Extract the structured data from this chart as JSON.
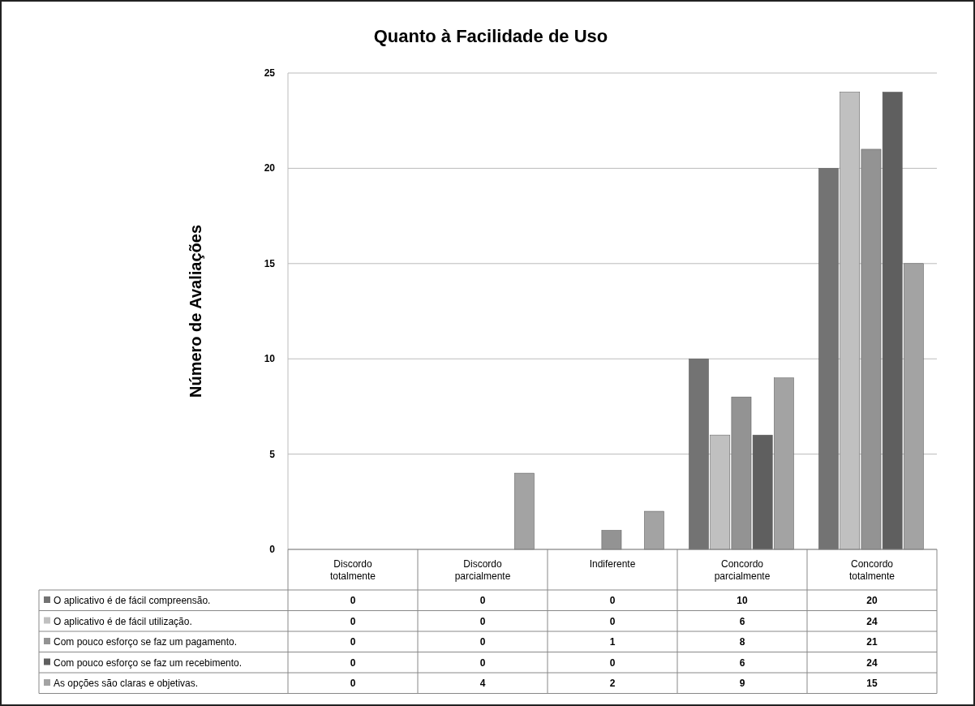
{
  "chart_data": {
    "type": "bar",
    "title": "Quanto à Facilidade de Uso",
    "ylabel": "Número de Avaliações",
    "categories": [
      "Discordo totalmente",
      "Discordo parcialmente",
      "Indiferente",
      "Concordo parcialmente",
      "Concordo totalmente"
    ],
    "series": [
      {
        "name": "O aplicativo é de fácil compreensão.",
        "color": "#737373",
        "values": [
          0,
          0,
          0,
          10,
          20
        ]
      },
      {
        "name": "O aplicativo é de fácil utilização.",
        "color": "#c0c0c0",
        "values": [
          0,
          0,
          0,
          6,
          24
        ]
      },
      {
        "name": "Com pouco esforço se faz um pagamento.",
        "color": "#939393",
        "values": [
          0,
          0,
          1,
          8,
          21
        ]
      },
      {
        "name": "Com pouco esforço se faz um recebimento.",
        "color": "#5f5f5f",
        "values": [
          0,
          0,
          0,
          6,
          24
        ]
      },
      {
        "name": "As opções são claras e objetivas.",
        "color": "#a3a3a3",
        "values": [
          0,
          4,
          2,
          9,
          15
        ]
      }
    ],
    "ylim": [
      0,
      25
    ],
    "yticks": [
      0,
      5,
      10,
      15,
      20,
      25
    ],
    "grid": "y",
    "legend": "bottom",
    "data_labels": true
  }
}
